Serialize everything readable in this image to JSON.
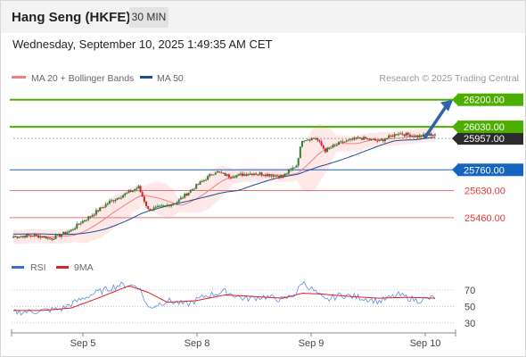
{
  "header": {
    "title": "Hang Seng (HKFE)",
    "timeframe": "30 MIN"
  },
  "timestamp": "Wednesday, September 10, 2025 1:49:35 AM CET",
  "legend_main": [
    {
      "label": "MA 20 + Bollinger Bands",
      "color": "#f08080"
    },
    {
      "label": "MA 50",
      "color": "#1f4e8c"
    }
  ],
  "legend_rsi": [
    {
      "label": "RSI",
      "color": "#3a6fd8"
    },
    {
      "label": "9MA",
      "color": "#e02020"
    }
  ],
  "credit": "Research © 2025 Trading Central",
  "colors": {
    "up": "#2e7d32",
    "down": "#c62828",
    "target": "#4caf00",
    "pivot": "#1565c0",
    "support": "#e57373",
    "ma50": "#1f4e8c",
    "ma20": "#f08080",
    "band": "#fde0e0"
  },
  "chart_data": {
    "type": "candlestick",
    "x_ticks": [
      "Sep 5",
      "Sep 8",
      "Sep 9",
      "Sep 10"
    ],
    "price_ylim": [
      25280,
      26260
    ],
    "levels": [
      {
        "value": 26200,
        "label": "26200.00",
        "kind": "resistance"
      },
      {
        "value": 26030,
        "label": "26030.00",
        "kind": "resistance"
      },
      {
        "value": 25957,
        "label": "25957.00",
        "kind": "last"
      },
      {
        "value": 25760,
        "label": "25760.00",
        "kind": "pivot"
      },
      {
        "value": 25630,
        "label": "25630.00",
        "kind": "support"
      },
      {
        "value": 25460,
        "label": "25460.00",
        "kind": "support"
      }
    ],
    "close_anchors": [
      [
        0,
        25340
      ],
      [
        10,
        25350
      ],
      [
        20,
        25330
      ],
      [
        30,
        25380
      ],
      [
        35,
        25430
      ],
      [
        40,
        25470
      ],
      [
        50,
        25560
      ],
      [
        60,
        25620
      ],
      [
        65,
        25650
      ],
      [
        70,
        25510
      ],
      [
        78,
        25530
      ],
      [
        85,
        25560
      ],
      [
        95,
        25660
      ],
      [
        105,
        25750
      ],
      [
        112,
        25720
      ],
      [
        125,
        25740
      ],
      [
        140,
        25720
      ],
      [
        147,
        25790
      ],
      [
        150,
        25950
      ],
      [
        157,
        25960
      ],
      [
        162,
        25880
      ],
      [
        170,
        25930
      ],
      [
        180,
        25960
      ],
      [
        190,
        25940
      ],
      [
        200,
        25990
      ],
      [
        210,
        25970
      ],
      [
        219,
        25985
      ]
    ],
    "rsi": {
      "ylim": [
        20,
        85
      ],
      "levels": [
        70,
        50,
        30
      ],
      "rsi_anchors": [
        [
          0,
          43
        ],
        [
          12,
          44
        ],
        [
          25,
          47
        ],
        [
          40,
          64
        ],
        [
          55,
          76
        ],
        [
          65,
          75
        ],
        [
          70,
          48
        ],
        [
          80,
          57
        ],
        [
          90,
          52
        ],
        [
          100,
          63
        ],
        [
          110,
          68
        ],
        [
          120,
          59
        ],
        [
          130,
          62
        ],
        [
          140,
          58
        ],
        [
          147,
          66
        ],
        [
          150,
          80
        ],
        [
          156,
          69
        ],
        [
          162,
          57
        ],
        [
          170,
          64
        ],
        [
          180,
          61
        ],
        [
          190,
          56
        ],
        [
          200,
          64
        ],
        [
          210,
          57
        ],
        [
          219,
          61
        ]
      ],
      "ma9_anchors": [
        [
          0,
          45
        ],
        [
          15,
          45
        ],
        [
          30,
          48
        ],
        [
          45,
          61
        ],
        [
          60,
          75
        ],
        [
          70,
          67
        ],
        [
          80,
          55
        ],
        [
          95,
          57
        ],
        [
          110,
          64
        ],
        [
          125,
          62
        ],
        [
          140,
          60
        ],
        [
          150,
          66
        ],
        [
          160,
          65
        ],
        [
          175,
          62
        ],
        [
          190,
          60
        ],
        [
          205,
          61
        ],
        [
          219,
          60
        ]
      ]
    }
  }
}
